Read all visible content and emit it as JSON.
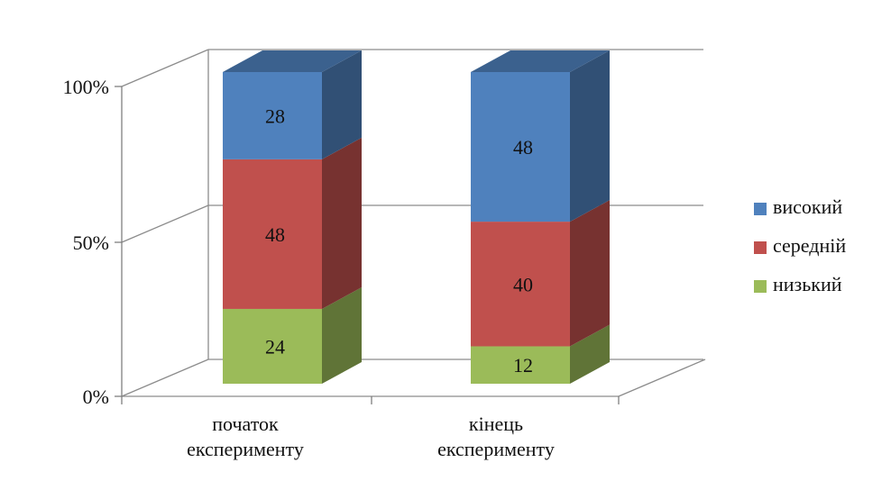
{
  "chart_data": {
    "type": "bar",
    "stacked": true,
    "percent_stacked": true,
    "three_d": true,
    "categories": [
      [
        "початок",
        "експерименту"
      ],
      [
        "кінець",
        "експерименту"
      ]
    ],
    "series": [
      {
        "name": "низький",
        "values": [
          24,
          12
        ],
        "color": "#9bbb59"
      },
      {
        "name": "середній",
        "values": [
          48,
          40
        ],
        "color": "#c0504d"
      },
      {
        "name": "високий",
        "values": [
          28,
          48
        ],
        "color": "#4f81bd"
      }
    ],
    "y_ticks": [
      "0%",
      "50%",
      "100%"
    ],
    "ylim": [
      0,
      100
    ],
    "grid": true,
    "legend_position": "right",
    "legend_order": [
      "високий",
      "середній",
      "низький"
    ]
  }
}
